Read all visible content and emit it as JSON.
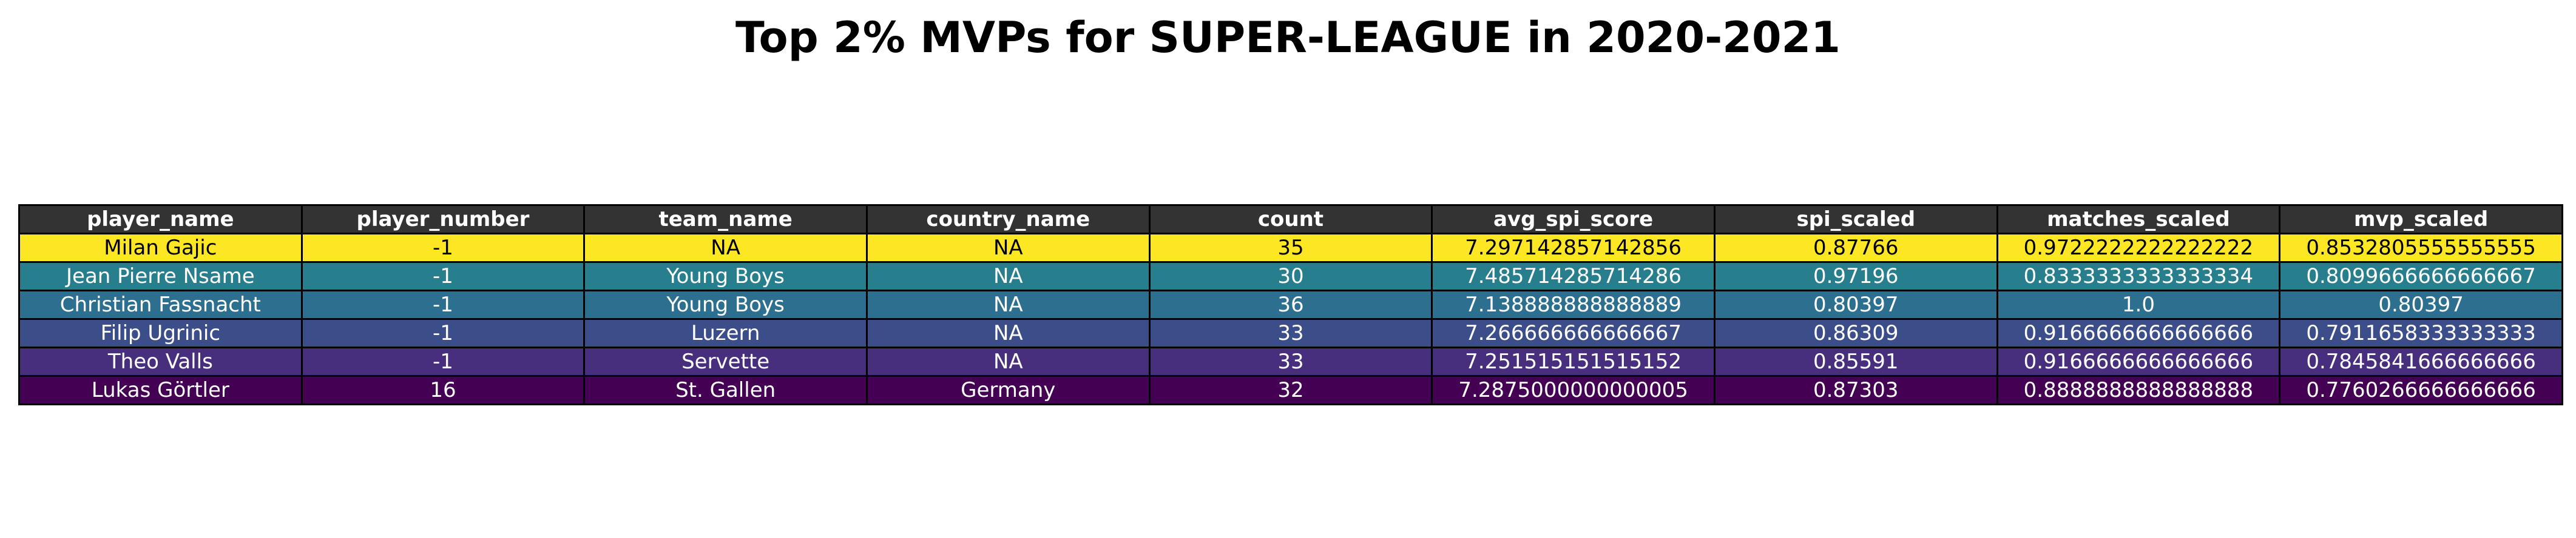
{
  "chart_data": {
    "type": "table",
    "title": "Top 2% MVPs for SUPER-LEAGUE in 2020-2021",
    "columns": [
      "player_name",
      "player_number",
      "team_name",
      "country_name",
      "count",
      "avg_spi_score",
      "spi_scaled",
      "matches_scaled",
      "mvp_scaled"
    ],
    "header_color": "#333333",
    "header_text_color": "#ffffff",
    "rows": [
      {
        "cells": [
          "Milan Gajic",
          "-1",
          "NA",
          "NA",
          "35",
          "7.297142857142856",
          "0.87766",
          "0.9722222222222222",
          "0.8532805555555555"
        ],
        "color": "#fde725",
        "text_color": "#000000"
      },
      {
        "cells": [
          "Jean Pierre Nsame",
          "-1",
          "Young Boys",
          "NA",
          "30",
          "7.485714285714286",
          "0.97196",
          "0.8333333333333334",
          "0.8099666666666667"
        ],
        "color": "#277f8e",
        "text_color": "#ffffff"
      },
      {
        "cells": [
          "Christian Fassnacht",
          "-1",
          "Young Boys",
          "NA",
          "36",
          "7.138888888888889",
          "0.80397",
          "1.0",
          "0.80397"
        ],
        "color": "#2c6f8e",
        "text_color": "#ffffff"
      },
      {
        "cells": [
          "Filip Ugrinic",
          "-1",
          "Luzern",
          "NA",
          "33",
          "7.266666666666667",
          "0.86309",
          "0.9166666666666666",
          "0.7911658333333333"
        ],
        "color": "#3c4e8a",
        "text_color": "#ffffff"
      },
      {
        "cells": [
          "Theo Valls",
          "-1",
          "Servette",
          "NA",
          "33",
          "7.251515151515152",
          "0.85591",
          "0.9166666666666666",
          "0.7845841666666666"
        ],
        "color": "#472f7d",
        "text_color": "#ffffff"
      },
      {
        "cells": [
          "Lukas Görtler",
          "16",
          "St. Gallen",
          "Germany",
          "32",
          "7.2875000000000005",
          "0.87303",
          "0.8888888888888888",
          "0.7760266666666666"
        ],
        "color": "#440154",
        "text_color": "#ffffff"
      }
    ]
  }
}
